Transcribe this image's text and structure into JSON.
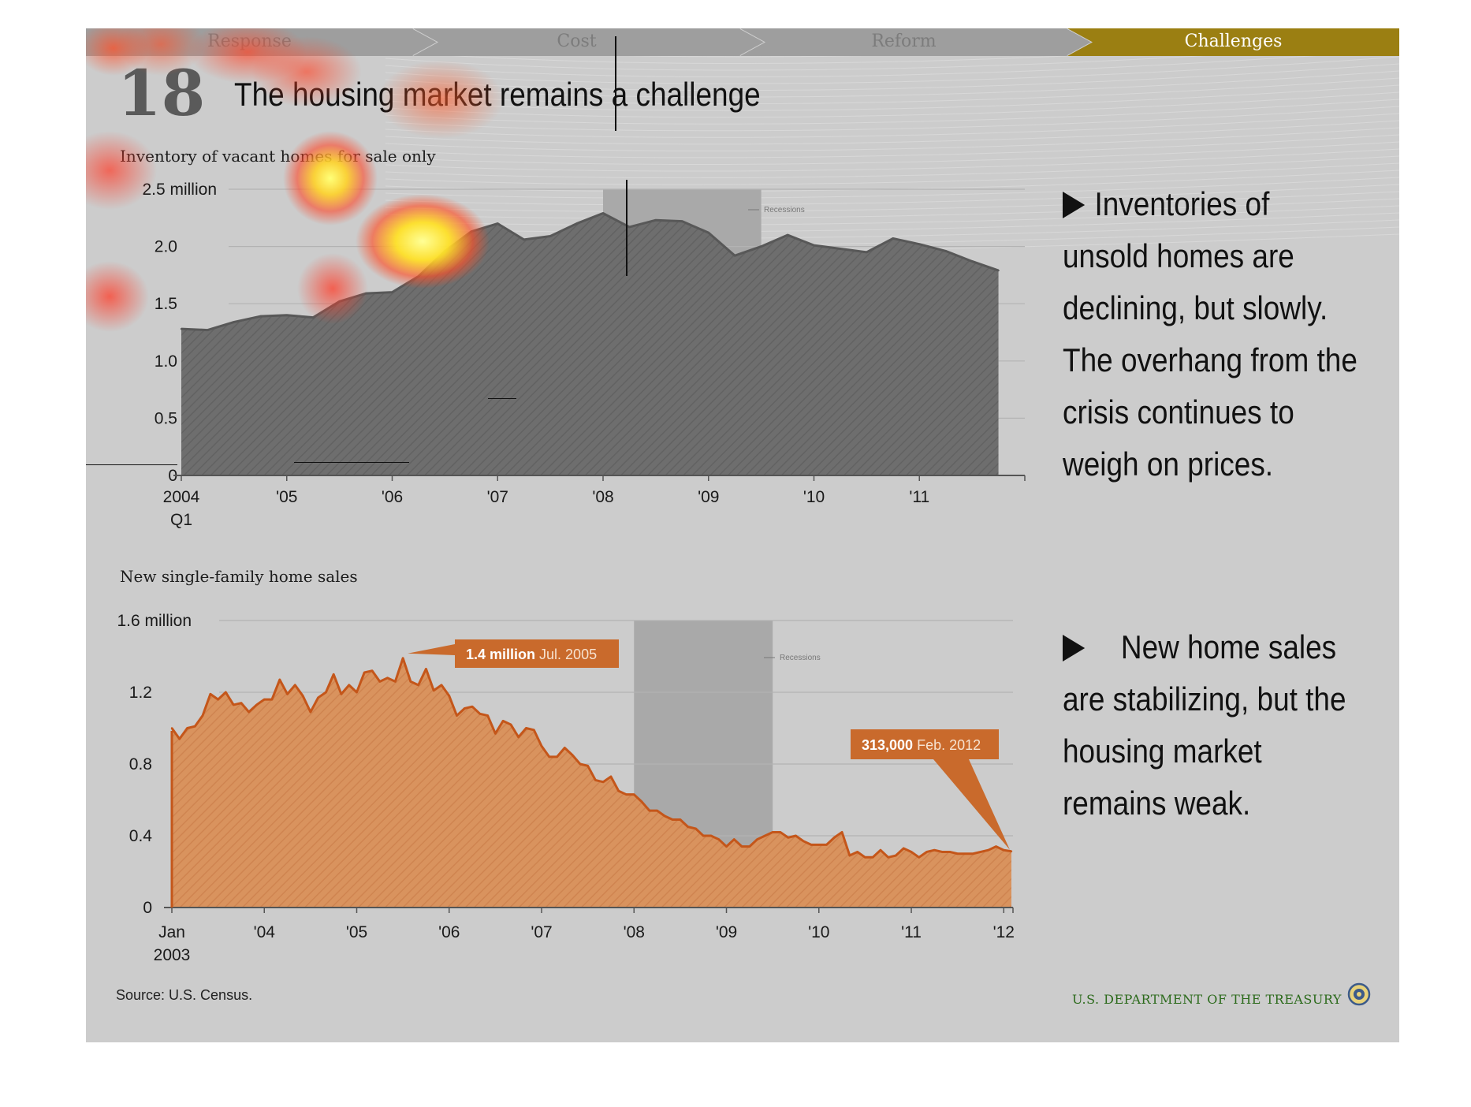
{
  "nav": {
    "items": [
      "Response",
      "Cost",
      "Reform",
      "Challenges"
    ],
    "active_index": 3,
    "active_color": "#9b7f12",
    "inactive_color": "#9e9e9e"
  },
  "slide": {
    "number": "18",
    "title": "The housing market remains a challenge"
  },
  "bullets": {
    "first": [
      "Inventories of",
      "unsold homes are",
      "declining, but slowly.",
      "The overhang from the",
      "crisis continues to",
      "weigh on prices."
    ],
    "second": [
      "New home sales",
      "are stabilizing, but the",
      "housing market",
      "remains weak."
    ]
  },
  "footer": {
    "source": "Source: U.S. Census.",
    "department": "U.S. DEPARTMENT OF THE TREASURY",
    "seal_icon": "treasury-seal-icon"
  },
  "chart_data": [
    {
      "type": "area",
      "title": "Inventory of vacant homes for sale only",
      "ylabel": "",
      "ylim": [
        0,
        2.5
      ],
      "yticks": [
        "0",
        "0.5",
        "1.0",
        "1.5",
        "2.0",
        "2.5 million"
      ],
      "xlim": [
        2004.0,
        2012.0
      ],
      "xticks": [
        {
          "x": 2004,
          "label": "2004",
          "sub": "Q1"
        },
        {
          "x": 2005,
          "label": "'05"
        },
        {
          "x": 2006,
          "label": "'06"
        },
        {
          "x": 2007,
          "label": "'07"
        },
        {
          "x": 2008,
          "label": "'08"
        },
        {
          "x": 2009,
          "label": "'09"
        },
        {
          "x": 2010,
          "label": "'10"
        },
        {
          "x": 2011,
          "label": "'11"
        }
      ],
      "recession": {
        "start": 2008.0,
        "end": 2009.5,
        "label": "Recessions"
      },
      "color": "#6e6e6e",
      "series": [
        {
          "x": [
            2004.0,
            2004.25,
            2004.5,
            2004.75,
            2005.0,
            2005.25,
            2005.5,
            2005.75,
            2006.0,
            2006.25,
            2006.5,
            2006.75,
            2007.0,
            2007.25,
            2007.5,
            2007.75,
            2008.0,
            2008.25,
            2008.5,
            2008.75,
            2009.0,
            2009.25,
            2009.5,
            2009.75,
            2010.0,
            2010.25,
            2010.5,
            2010.75,
            2011.0,
            2011.25,
            2011.5,
            2011.75
          ],
          "values": [
            1.28,
            1.27,
            1.34,
            1.39,
            1.4,
            1.38,
            1.52,
            1.59,
            1.6,
            1.74,
            1.96,
            2.13,
            2.2,
            2.06,
            2.09,
            2.2,
            2.29,
            2.17,
            2.23,
            2.22,
            2.12,
            1.92,
            2.0,
            2.1,
            2.01,
            1.98,
            1.95,
            2.07,
            2.02,
            1.96,
            1.87,
            1.79
          ]
        }
      ]
    },
    {
      "type": "area",
      "title": "New single-family home sales",
      "ylabel": "",
      "ylim": [
        0,
        1.6
      ],
      "yticks": [
        "0",
        "0.4",
        "0.8",
        "1.2",
        "1.6 million"
      ],
      "xlim": [
        2003.0,
        2012.1
      ],
      "xticks": [
        {
          "x": 2003,
          "label": "Jan",
          "sub": "2003"
        },
        {
          "x": 2004,
          "label": "'04"
        },
        {
          "x": 2005,
          "label": "'05"
        },
        {
          "x": 2006,
          "label": "'06"
        },
        {
          "x": 2007,
          "label": "'07"
        },
        {
          "x": 2008,
          "label": "'08"
        },
        {
          "x": 2009,
          "label": "'09"
        },
        {
          "x": 2010,
          "label": "'10"
        },
        {
          "x": 2011,
          "label": "'11"
        },
        {
          "x": 2012,
          "label": "'12"
        }
      ],
      "recession": {
        "start": 2008.0,
        "end": 2009.5,
        "label": "Recessions"
      },
      "color": "#c8631a",
      "annotations": [
        {
          "value_text": "1.4 million",
          "date_text": "Jul. 2005",
          "x": 2005.5,
          "y": 1.39
        },
        {
          "value_text": "313,000",
          "date_text": "Feb. 2012",
          "x": 2012.083,
          "y": 0.313
        }
      ],
      "series": [
        {
          "x": [
            2003.0,
            2003.083,
            2003.167,
            2003.25,
            2003.333,
            2003.417,
            2003.5,
            2003.583,
            2003.667,
            2003.75,
            2003.833,
            2003.917,
            2004.0,
            2004.083,
            2004.167,
            2004.25,
            2004.333,
            2004.417,
            2004.5,
            2004.583,
            2004.667,
            2004.75,
            2004.833,
            2004.917,
            2005.0,
            2005.083,
            2005.167,
            2005.25,
            2005.333,
            2005.417,
            2005.5,
            2005.583,
            2005.667,
            2005.75,
            2005.833,
            2005.917,
            2006.0,
            2006.083,
            2006.167,
            2006.25,
            2006.333,
            2006.417,
            2006.5,
            2006.583,
            2006.667,
            2006.75,
            2006.833,
            2006.917,
            2007.0,
            2007.083,
            2007.167,
            2007.25,
            2007.333,
            2007.417,
            2007.5,
            2007.583,
            2007.667,
            2007.75,
            2007.833,
            2007.917,
            2008.0,
            2008.083,
            2008.167,
            2008.25,
            2008.333,
            2008.417,
            2008.5,
            2008.583,
            2008.667,
            2008.75,
            2008.833,
            2008.917,
            2009.0,
            2009.083,
            2009.167,
            2009.25,
            2009.333,
            2009.417,
            2009.5,
            2009.583,
            2009.667,
            2009.75,
            2009.833,
            2009.917,
            2010.0,
            2010.083,
            2010.167,
            2010.25,
            2010.333,
            2010.417,
            2010.5,
            2010.583,
            2010.667,
            2010.75,
            2010.833,
            2010.917,
            2011.0,
            2011.083,
            2011.167,
            2011.25,
            2011.333,
            2011.417,
            2011.5,
            2011.583,
            2011.667,
            2011.75,
            2011.833,
            2011.917,
            2012.0,
            2012.083
          ],
          "values": [
            1.0,
            0.94,
            1.0,
            1.01,
            1.07,
            1.19,
            1.16,
            1.2,
            1.13,
            1.14,
            1.09,
            1.13,
            1.16,
            1.16,
            1.27,
            1.19,
            1.24,
            1.18,
            1.09,
            1.17,
            1.2,
            1.3,
            1.19,
            1.24,
            1.2,
            1.31,
            1.32,
            1.26,
            1.28,
            1.26,
            1.39,
            1.26,
            1.24,
            1.33,
            1.21,
            1.24,
            1.18,
            1.07,
            1.11,
            1.12,
            1.08,
            1.07,
            0.97,
            1.04,
            1.02,
            0.95,
            1.0,
            0.99,
            0.9,
            0.84,
            0.84,
            0.89,
            0.85,
            0.8,
            0.79,
            0.71,
            0.7,
            0.73,
            0.65,
            0.63,
            0.63,
            0.59,
            0.54,
            0.54,
            0.51,
            0.49,
            0.49,
            0.45,
            0.44,
            0.4,
            0.4,
            0.38,
            0.34,
            0.38,
            0.34,
            0.34,
            0.38,
            0.4,
            0.42,
            0.42,
            0.39,
            0.4,
            0.37,
            0.35,
            0.35,
            0.35,
            0.39,
            0.42,
            0.29,
            0.31,
            0.28,
            0.28,
            0.32,
            0.28,
            0.29,
            0.33,
            0.31,
            0.28,
            0.31,
            0.32,
            0.31,
            0.31,
            0.3,
            0.3,
            0.3,
            0.31,
            0.32,
            0.34,
            0.32,
            0.313
          ]
        }
      ]
    }
  ]
}
